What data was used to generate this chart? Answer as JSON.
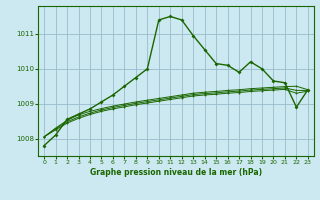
{
  "background_color": "#cce8f0",
  "grid_color": "#99bbcc",
  "line_color": "#1a6600",
  "title": "Graphe pression niveau de la mer (hPa)",
  "xlim": [
    -0.5,
    23.5
  ],
  "ylim": [
    1007.5,
    1011.8
  ],
  "yticks": [
    1008,
    1009,
    1010,
    1011
  ],
  "xticks": [
    0,
    1,
    2,
    3,
    4,
    5,
    6,
    7,
    8,
    9,
    10,
    11,
    12,
    13,
    14,
    15,
    16,
    17,
    18,
    19,
    20,
    21,
    22,
    23
  ],
  "series1": [
    1007.8,
    1008.1,
    1008.55,
    1008.7,
    1008.85,
    1009.05,
    1009.25,
    1009.5,
    1009.75,
    1010.0,
    1011.4,
    1011.5,
    1011.4,
    1010.95,
    1010.55,
    1010.15,
    1010.1,
    1009.9,
    1010.2,
    1010.0,
    1009.65,
    1009.6,
    1008.9,
    1009.4
  ],
  "series2": [
    1008.05,
    1008.3,
    1008.52,
    1008.68,
    1008.78,
    1008.86,
    1008.93,
    1008.99,
    1009.05,
    1009.1,
    1009.15,
    1009.2,
    1009.25,
    1009.3,
    1009.33,
    1009.35,
    1009.38,
    1009.4,
    1009.43,
    1009.45,
    1009.47,
    1009.49,
    1009.5,
    1009.4
  ],
  "series3": [
    1008.05,
    1008.28,
    1008.48,
    1008.62,
    1008.73,
    1008.82,
    1008.89,
    1008.95,
    1009.01,
    1009.06,
    1009.11,
    1009.16,
    1009.21,
    1009.26,
    1009.29,
    1009.31,
    1009.34,
    1009.36,
    1009.39,
    1009.41,
    1009.43,
    1009.45,
    1009.38,
    1009.38
  ],
  "series4": [
    1008.05,
    1008.25,
    1008.44,
    1008.58,
    1008.69,
    1008.78,
    1008.85,
    1008.91,
    1008.97,
    1009.02,
    1009.07,
    1009.12,
    1009.17,
    1009.22,
    1009.25,
    1009.27,
    1009.3,
    1009.32,
    1009.35,
    1009.37,
    1009.39,
    1009.41,
    1009.3,
    1009.36
  ]
}
